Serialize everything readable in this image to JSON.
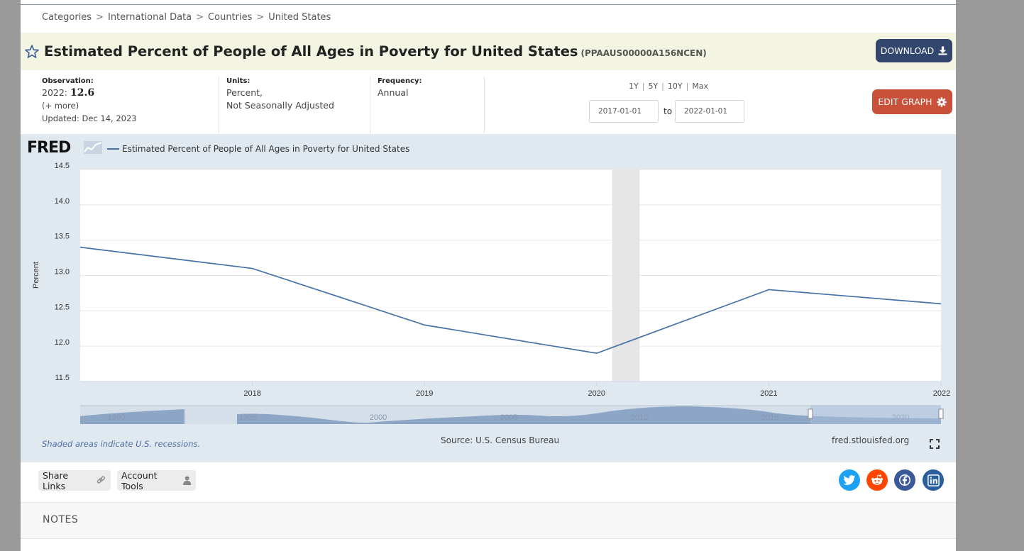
{
  "breadcrumb": [
    "Categories",
    "International Data",
    "Countries",
    "United States"
  ],
  "breadcrumb_separator": ">",
  "series": {
    "title": "Estimated Percent of People of All Ages in Poverty for United States",
    "id": "(PPAAUS00000A156NCEN)"
  },
  "buttons": {
    "download": "DOWNLOAD",
    "edit_graph": "EDIT GRAPH"
  },
  "observation": {
    "label": "Observation:",
    "date": "2022:",
    "value": "12.6",
    "more": "(+ more)",
    "updated": "Updated: Dec 14, 2023"
  },
  "units": {
    "label": "Units:",
    "line1": "Percent,",
    "line2": "Not Seasonally Adjusted"
  },
  "frequency": {
    "label": "Frequency:",
    "value": "Annual"
  },
  "range_links": [
    "1Y",
    "5Y",
    "10Y",
    "Max"
  ],
  "date_range": {
    "start": "2017-01-01",
    "to": "to",
    "end": "2022-01-01"
  },
  "graph": {
    "logo": "FRED",
    "recession_note": "Shaded areas indicate U.S. recessions.",
    "source": "Source: U.S. Census Bureau",
    "url": "fred.stlouisfed.org"
  },
  "actions": {
    "share_links": "Share Links",
    "account_tools": "Account Tools"
  },
  "social_icons": [
    "twitter-icon",
    "reddit-icon",
    "facebook-icon",
    "linkedin-icon"
  ],
  "colors": {
    "series_line": "#4572a7",
    "download_button": "#33466e",
    "edit_button": "#c9513a",
    "title_bar": "#f3f4e1",
    "graph_background": "#e1e9f0",
    "recession_shade": "#e6e6e6",
    "twitter": "#1da1f2",
    "reddit": "#ff4500",
    "facebook": "#3b5998",
    "linkedin": "#2a5e9c"
  },
  "notes_label": "NOTES",
  "chart_data": {
    "type": "line",
    "title": "",
    "xlabel": "",
    "ylabel": "Percent",
    "x": [
      2017,
      2018,
      2019,
      2020,
      2021,
      2022
    ],
    "xticks": [
      "2018",
      "2019",
      "2020",
      "2021",
      "2022"
    ],
    "yticks": [
      "11.5",
      "12.0",
      "12.5",
      "13.0",
      "13.5",
      "14.0",
      "14.5"
    ],
    "ylim": [
      11.5,
      14.5
    ],
    "grid": true,
    "legend": "top-left",
    "series": [
      {
        "name": "Estimated Percent of People of All Ages in Poverty for United States",
        "values": [
          13.4,
          13.1,
          12.3,
          11.9,
          12.8,
          12.6
        ]
      }
    ],
    "recessions": [
      [
        2020.09,
        2020.25
      ]
    ],
    "navigator": {
      "ticks": [
        "1990",
        "1995",
        "2000",
        "2005",
        "2010",
        "2015",
        "2020"
      ]
    }
  }
}
